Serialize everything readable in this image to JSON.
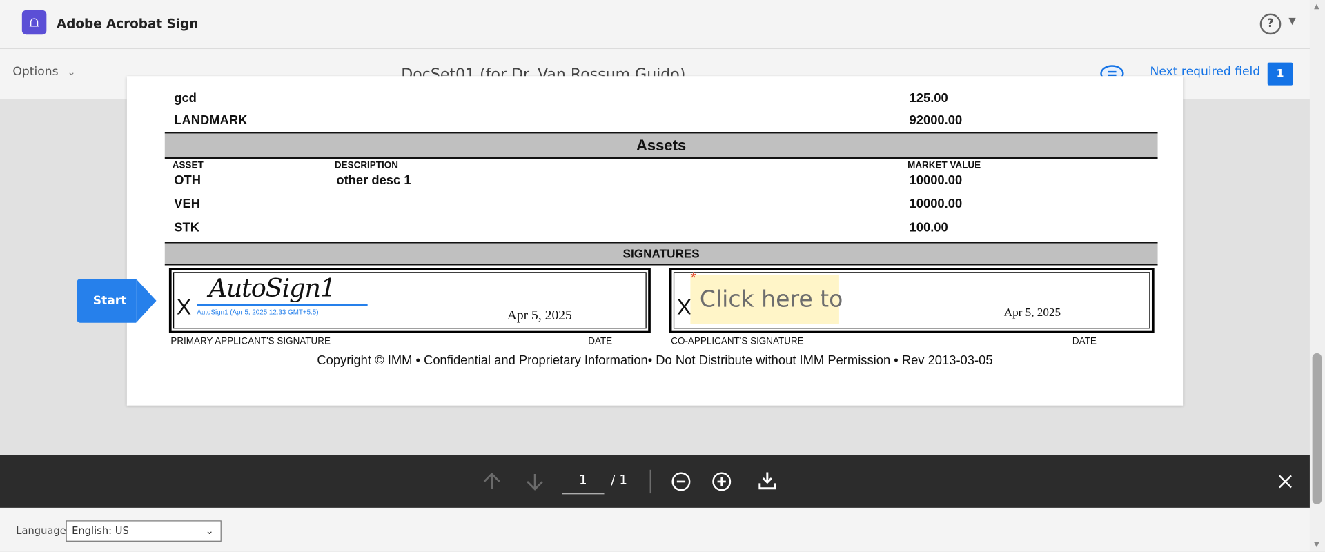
{
  "app": {
    "name": "Adobe Acrobat Sign",
    "help_icon": "help-circle-icon"
  },
  "subheader": {
    "options_label": "Options",
    "document_title": "DocSet01 (for Dr. Van Rossum Guido)",
    "next_required_label": "Next required field",
    "required_count": "1"
  },
  "document": {
    "top_rows": [
      {
        "name": "gcd",
        "value": "125.00"
      },
      {
        "name": "LANDMARK",
        "value": "92000.00"
      }
    ],
    "assets": {
      "title": "Assets",
      "headers": [
        "ASSET",
        "DESCRIPTION",
        "MARKET VALUE"
      ],
      "rows": [
        {
          "asset": "OTH",
          "description": "other desc 1",
          "value": "10000.00"
        },
        {
          "asset": "VEH",
          "description": "",
          "value": "10000.00"
        },
        {
          "asset": "STK",
          "description": "",
          "value": "100.00"
        }
      ]
    },
    "signatures": {
      "title": "SIGNATURES",
      "primary": {
        "x": "X",
        "signature": "AutoSign1",
        "stamp": "AutoSign1 (Apr 5, 2025 12:33 GMT+5.5)",
        "date": "Apr 5, 2025",
        "label": "PRIMARY APPLICANT'S SIGNATURE",
        "date_label": "DATE"
      },
      "co": {
        "x": "X",
        "required_mark": "*",
        "placeholder": "Click here to",
        "date": "Apr 5, 2025",
        "label": "CO-APPLICANT'S SIGNATURE",
        "date_label": "DATE"
      }
    },
    "copyright": "Copyright © IMM • Confidential and Proprietary Information• Do Not Distribute without IMM Permission • Rev 2013-03-05"
  },
  "start_label": "Start",
  "toolbar": {
    "page_current": "1",
    "page_total": "/ 1"
  },
  "footer": {
    "language_label": "Language",
    "language_value": "English: US"
  },
  "colors": {
    "accent": "#1473e6",
    "start": "#2680eb",
    "logo": "#5b4fd6",
    "toolbar": "#2c2c2c",
    "field_highlight": "#fff5c8"
  }
}
